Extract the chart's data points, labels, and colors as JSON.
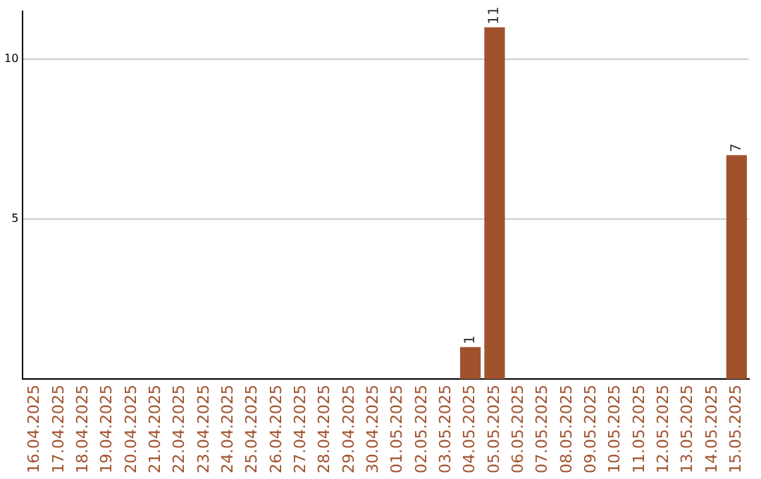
{
  "chart_data": {
    "type": "bar",
    "categories": [
      "16.04.2025",
      "17.04.2025",
      "18.04.2025",
      "19.04.2025",
      "20.04.2025",
      "21.04.2025",
      "22.04.2025",
      "23.04.2025",
      "24.04.2025",
      "25.04.2025",
      "26.04.2025",
      "27.04.2025",
      "28.04.2025",
      "29.04.2025",
      "30.04.2025",
      "01.05.2025",
      "02.05.2025",
      "03.05.2025",
      "04.05.2025",
      "05.05.2025",
      "06.05.2025",
      "07.05.2025",
      "08.05.2025",
      "09.05.2025",
      "10.05.2025",
      "11.05.2025",
      "12.05.2025",
      "13.05.2025",
      "14.05.2025",
      "15.05.2025"
    ],
    "values": [
      0,
      0,
      0,
      0,
      0,
      0,
      0,
      0,
      0,
      0,
      0,
      0,
      0,
      0,
      0,
      0,
      0,
      0,
      1,
      11,
      0,
      0,
      0,
      0,
      0,
      0,
      0,
      0,
      0,
      7
    ],
    "value_labels": [
      null,
      null,
      null,
      null,
      null,
      null,
      null,
      null,
      null,
      null,
      null,
      null,
      null,
      null,
      null,
      null,
      null,
      null,
      "1",
      "11",
      null,
      null,
      null,
      null,
      null,
      null,
      null,
      null,
      null,
      "7"
    ],
    "color": "#a0522d",
    "ylim": [
      0,
      11.5
    ],
    "yticks": [
      5,
      10
    ],
    "grid": "y",
    "legend": false
  }
}
